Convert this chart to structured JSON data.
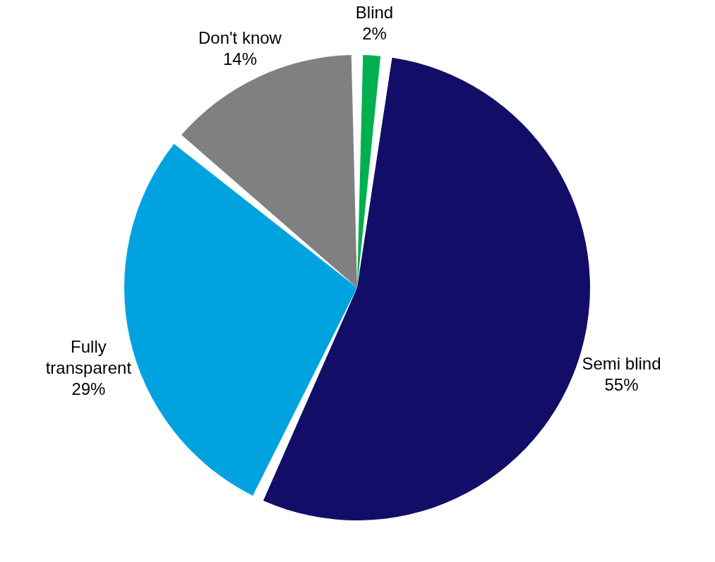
{
  "chart_data": {
    "type": "pie",
    "categories": [
      "Blind",
      "Semi blind",
      "Fully transparent",
      "Don't know"
    ],
    "values": [
      2,
      55,
      29,
      14
    ],
    "colors": [
      "#00b050",
      "#120e68",
      "#00a3e0",
      "#808080"
    ],
    "value_labels": [
      "2%",
      "55%",
      "29%",
      "14%"
    ],
    "legend": false
  }
}
